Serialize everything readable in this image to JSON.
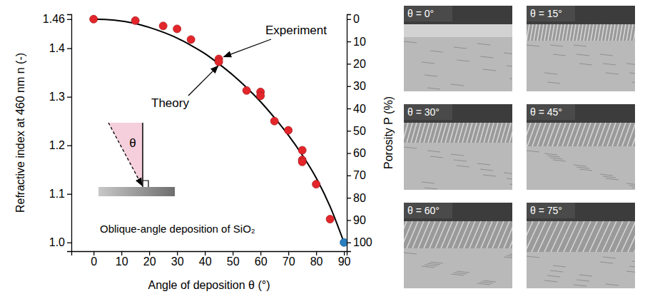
{
  "chart_data": {
    "type": "scatter",
    "x_label": "Angle of deposition θ (°)",
    "y_label": "Refractive index at 460 nm n (-)",
    "y2_label": "Porosity P (%)",
    "xlim": [
      -8,
      91
    ],
    "xticks": [
      0,
      10,
      20,
      30,
      40,
      50,
      60,
      70,
      80,
      90
    ],
    "ylim": [
      0.982,
      1.47
    ],
    "yticks": [
      {
        "value": 1,
        "label": "1.0"
      },
      1.1,
      1.2,
      1.3,
      1.4,
      1.46
    ],
    "y2lim": [
      103.91,
      -2.17
    ],
    "y2ticks": [
      0,
      10,
      20,
      30,
      40,
      50,
      60,
      70,
      80,
      90,
      100
    ],
    "grid": false,
    "series": [
      {
        "type": "line",
        "color": "#000000",
        "line_style": "solid",
        "x": [
          0,
          5,
          10,
          15,
          20,
          25,
          30,
          35,
          40,
          45,
          50,
          55,
          60,
          65,
          70,
          75,
          80,
          85,
          90
        ],
        "values": [
          1.46,
          1.459,
          1.456,
          1.451,
          1.443,
          1.433,
          1.421,
          1.406,
          1.389,
          1.368,
          1.345,
          1.319,
          1.29,
          1.257,
          1.221,
          1.18,
          1.133,
          1.074,
          1.0
        ]
      },
      {
        "type": "scatter",
        "color": "#e3262b",
        "marker": "circle",
        "x": [
          0,
          15,
          25,
          30,
          35,
          45,
          45,
          55,
          60,
          60,
          65,
          70,
          75,
          75,
          75,
          80,
          85
        ],
        "values": [
          1.46,
          1.457,
          1.446,
          1.44,
          1.418,
          1.378,
          1.372,
          1.313,
          1.31,
          1.302,
          1.25,
          1.231,
          1.19,
          1.17,
          1.166,
          1.12,
          1.048
        ]
      },
      {
        "type": "scatter",
        "color": "#2a7fc0",
        "marker": "circle",
        "x": [
          90
        ],
        "values": [
          1.0
        ]
      }
    ],
    "annotations": [
      {
        "text": "Experiment"
      },
      {
        "text": "Theory"
      },
      {
        "text": "Oblique-angle deposition of SiO₂"
      }
    ],
    "inset_label": "θ"
  },
  "panels": [
    {
      "label": "θ = 0°"
    },
    {
      "label": "θ = 15°"
    },
    {
      "label": "θ = 30°"
    },
    {
      "label": "θ = 45°"
    },
    {
      "label": "θ = 60°"
    },
    {
      "label": "θ = 75°"
    }
  ]
}
